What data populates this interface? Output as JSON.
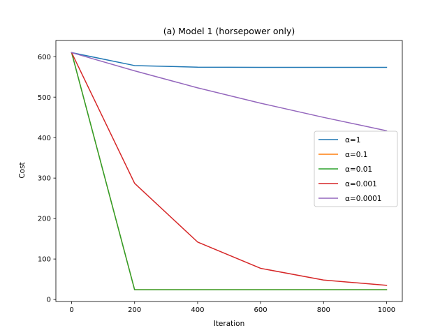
{
  "chart_data": {
    "type": "line",
    "title": "(a) Model 1 (horsepower only)",
    "xlabel": "Iteration",
    "ylabel": "Cost",
    "x": [
      0,
      200,
      400,
      600,
      800,
      1000
    ],
    "xlim": [
      -50,
      1050
    ],
    "ylim": [
      -5,
      640
    ],
    "xticks": [
      0,
      200,
      400,
      600,
      800,
      1000
    ],
    "yticks": [
      0,
      100,
      200,
      300,
      400,
      500,
      600
    ],
    "grid": false,
    "legend_position": "center-right",
    "series": [
      {
        "name": "α=1",
        "color": "#1f77b4",
        "values": [
          610,
          578,
          574,
          573.5,
          573.5,
          573.5
        ]
      },
      {
        "name": "α=0.1",
        "color": "#ff7f0e",
        "values": [
          610,
          24,
          24,
          24,
          24,
          24
        ]
      },
      {
        "name": "α=0.01",
        "color": "#2ca02c",
        "values": [
          610,
          24,
          24,
          24,
          24,
          24
        ]
      },
      {
        "name": "α=0.001",
        "color": "#d62728",
        "values": [
          610,
          287,
          142,
          77,
          48,
          35
        ]
      },
      {
        "name": "α=0.0001",
        "color": "#9467bd",
        "values": [
          610,
          565,
          523,
          485,
          450,
          417
        ]
      }
    ]
  }
}
